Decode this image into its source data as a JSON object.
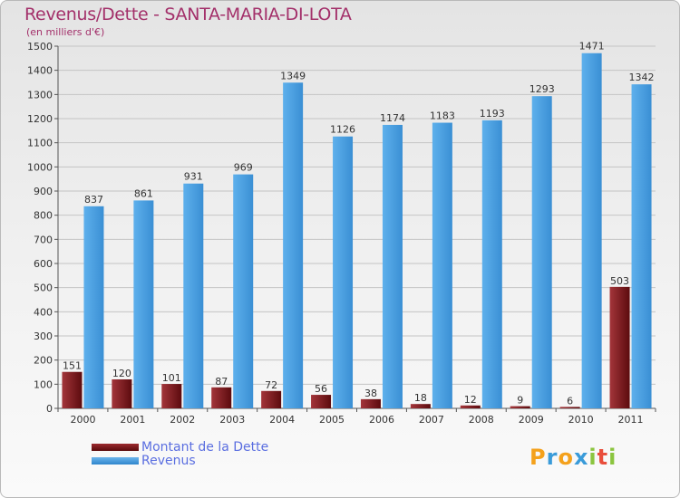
{
  "chart_data": {
    "type": "bar",
    "title": "Revenus/Dette - SANTA-MARIA-DI-LOTA",
    "subtitle": "(en milliers d'€)",
    "categories": [
      "2000",
      "2001",
      "2002",
      "2003",
      "2004",
      "2005",
      "2006",
      "2007",
      "2008",
      "2009",
      "2010",
      "2011"
    ],
    "series": [
      {
        "name": "Montant de la Dette",
        "color": "#7a1418",
        "values": [
          151,
          120,
          101,
          87,
          72,
          56,
          38,
          18,
          12,
          9,
          6,
          503
        ]
      },
      {
        "name": "Revenus",
        "color": "#4a9ede",
        "values": [
          837,
          861,
          931,
          969,
          1349,
          1126,
          1174,
          1183,
          1193,
          1293,
          1471,
          1342
        ]
      }
    ],
    "ylim": [
      0,
      1500
    ],
    "yticks": [
      0,
      100,
      200,
      300,
      400,
      500,
      600,
      700,
      800,
      900,
      1000,
      1100,
      1200,
      1300,
      1400,
      1500
    ],
    "grid": true,
    "legend_position": "bottom-left"
  },
  "logo": {
    "letters": [
      "P",
      "r",
      "o",
      "x",
      "i",
      "t",
      "i"
    ],
    "colors": [
      "#f4a11c",
      "#3a9bd9",
      "#f4a11c",
      "#3a9bd9",
      "#8bc53f",
      "#e94e3c",
      "#8bc53f"
    ]
  }
}
